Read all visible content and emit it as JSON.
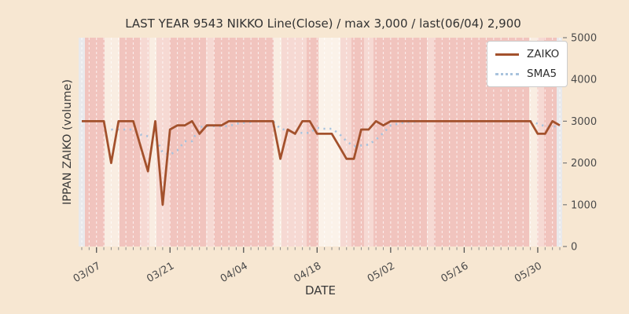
{
  "chart_data": {
    "type": "line",
    "title": "LAST YEAR 9543 NIKKO Line(Close) / max 3,000 / last(06/04) 2,900",
    "xlabel": "DATE",
    "ylabel": "IPPAN ZAIKO (volume)",
    "ylim": [
      0,
      5000
    ],
    "y_ticks": [
      0,
      1000,
      2000,
      3000,
      4000,
      5000
    ],
    "x_tick_labels": [
      "03/07",
      "03/21",
      "04/04",
      "04/18",
      "05/02",
      "05/16",
      "05/30"
    ],
    "x_tick_indices": [
      2,
      12,
      22,
      32,
      42,
      52,
      62
    ],
    "n_points": 66,
    "grid": "vertical-dashed-white-per-day",
    "legend_position": "upper right",
    "last_point": {
      "date": "06/04",
      "value": 2900
    },
    "max_value": 3000,
    "series": [
      {
        "name": "ZAIKO",
        "style": "solid",
        "color": "#a3512c",
        "values": [
          3000,
          3000,
          3000,
          3000,
          2000,
          3000,
          3000,
          3000,
          2400,
          1800,
          3000,
          1000,
          2800,
          2900,
          2900,
          3000,
          2700,
          2900,
          2900,
          2900,
          3000,
          3000,
          3000,
          3000,
          3000,
          3000,
          3000,
          2100,
          2800,
          2700,
          3000,
          3000,
          2700,
          2700,
          2700,
          2400,
          2100,
          2100,
          2800,
          2800,
          3000,
          2900,
          3000,
          3000,
          3000,
          3000,
          3000,
          3000,
          3000,
          3000,
          3000,
          3000,
          3000,
          3000,
          3000,
          3000,
          3000,
          3000,
          3000,
          3000,
          3000,
          3000,
          2700,
          2700,
          3000,
          2900
        ]
      },
      {
        "name": "SMA5",
        "style": "dotted",
        "color": "#a8c3dd",
        "values": [
          null,
          null,
          null,
          null,
          2800,
          2800,
          2800,
          2800,
          2680,
          2640,
          2640,
          2240,
          2200,
          2300,
          2520,
          2520,
          2860,
          2880,
          2880,
          2880,
          2880,
          2940,
          2960,
          2980,
          3000,
          3000,
          3000,
          2820,
          2780,
          2720,
          2720,
          2720,
          2840,
          2820,
          2820,
          2700,
          2520,
          2400,
          2420,
          2440,
          2560,
          2720,
          2900,
          2940,
          2980,
          2980,
          3000,
          3000,
          3000,
          3000,
          3000,
          3000,
          3000,
          3000,
          3000,
          3000,
          3000,
          3000,
          3000,
          3000,
          3000,
          3000,
          2940,
          2880,
          2880,
          2860
        ]
      }
    ],
    "background_palette": {
      "gray": "#e9e9ec",
      "salmon": "#f1c4be",
      "light": "#f6d9d3",
      "cream": "#f9ede2",
      "xlight": "#fbf2e9"
    },
    "background_stripes": [
      [
        0,
        8,
        "gray"
      ],
      [
        8,
        25,
        "salmon"
      ],
      [
        33,
        19,
        "cream"
      ],
      [
        52,
        26,
        "salmon"
      ],
      [
        78,
        12,
        "light"
      ],
      [
        90,
        9,
        "cream"
      ],
      [
        99,
        17,
        "light"
      ],
      [
        116,
        46,
        "salmon"
      ],
      [
        162,
        10,
        "light"
      ],
      [
        172,
        76,
        "salmon"
      ],
      [
        248,
        10,
        "cream"
      ],
      [
        258,
        32,
        "light"
      ],
      [
        290,
        15,
        "salmon"
      ],
      [
        305,
        28,
        "xlight"
      ],
      [
        333,
        14,
        "light"
      ],
      [
        347,
        16,
        "salmon"
      ],
      [
        363,
        12,
        "light"
      ],
      [
        375,
        68,
        "salmon"
      ],
      [
        443,
        9,
        "light"
      ],
      [
        452,
        121,
        "salmon"
      ],
      [
        573,
        10,
        "cream"
      ],
      [
        583,
        9,
        "light"
      ],
      [
        592,
        16,
        "salmon"
      ],
      [
        608,
        7,
        "gray"
      ]
    ]
  },
  "legend": {
    "items": [
      {
        "label": "ZAIKO"
      },
      {
        "label": "SMA5"
      }
    ]
  }
}
